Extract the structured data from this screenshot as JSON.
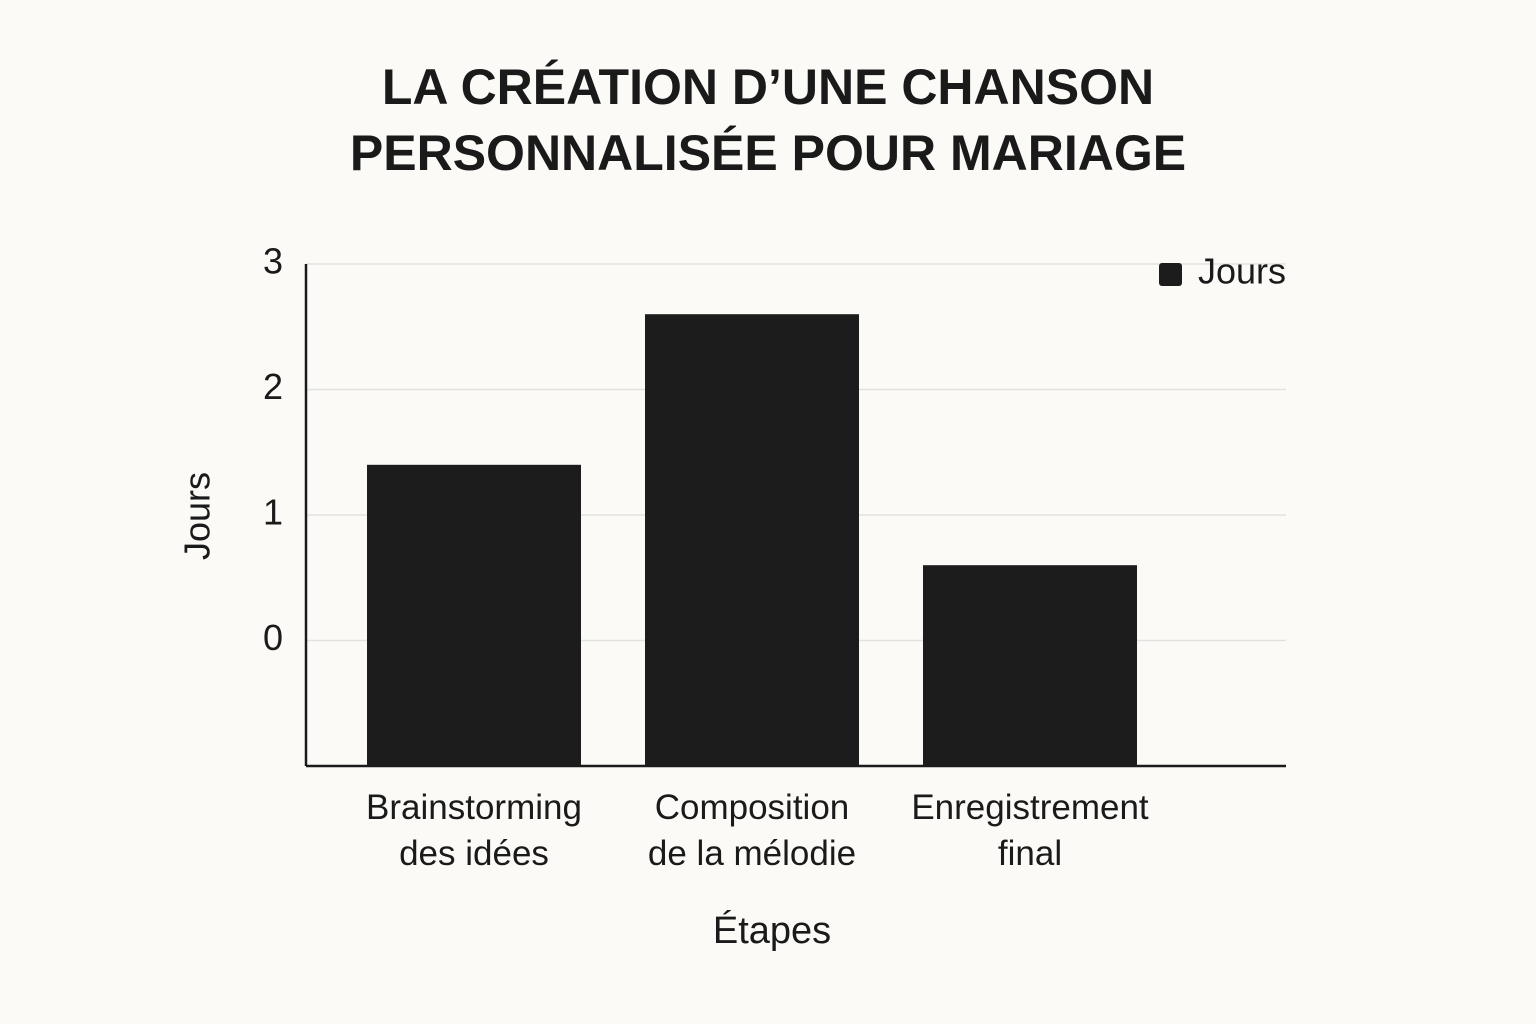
{
  "chart_data": {
    "type": "bar",
    "title": "LA CRÉATION D’UNE CHANSON\nPERSONNALISÉE POUR MARIAGE",
    "x_label": "Étapes",
    "y_label": "Jours",
    "categories": [
      "Brainstorming\ndes idées",
      "Composition\nde la mélodie",
      "Enregistrement\nfinal"
    ],
    "series": [
      {
        "name": "Jours",
        "color": "#1c1c1c",
        "values": [
          1.4,
          2.6,
          0.6
        ]
      }
    ],
    "ylim": [
      -1,
      3
    ],
    "yticks": [
      0,
      1,
      2,
      3
    ],
    "grid": true,
    "legend": "top-right"
  }
}
